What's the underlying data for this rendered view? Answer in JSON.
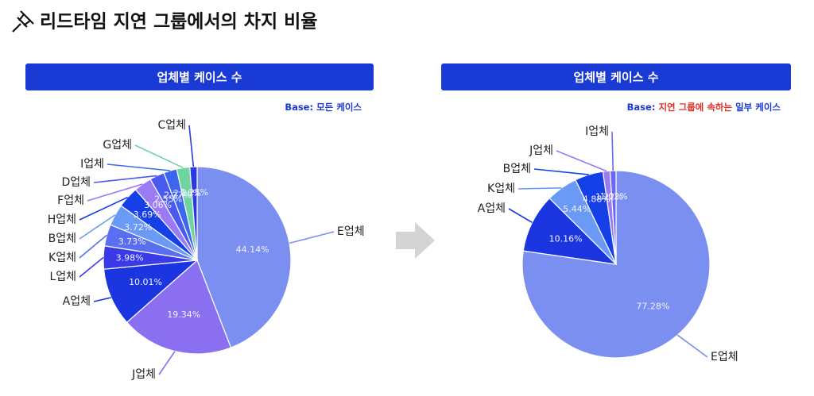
{
  "title": "리드타임 지연 그룹에서의 차지 비율",
  "chart_data": [
    {
      "type": "pie",
      "header": "업체별 케이스 수",
      "note": [
        "Base:",
        "모든 케이스"
      ],
      "note_colors": [
        "#1a3ad6",
        "#1a3ad6"
      ],
      "categories": [
        "E업체",
        "J업체",
        "A업체",
        "L업체",
        "K업체",
        "B업체",
        "H업체",
        "F업체",
        "D업체",
        "I업체",
        "G업체",
        "C업체"
      ],
      "values": [
        44.14,
        19.34,
        10.01,
        3.98,
        3.73,
        3.72,
        3.69,
        3.06,
        2.55,
        2.27,
        2.26,
        1.25
      ],
      "value_labels": [
        "44.14%",
        "19.34%",
        "10.01%",
        "3.98%",
        "3.73%",
        "3.72%",
        "3.69%",
        "3.06%",
        "2.55%",
        "2.27%",
        "2.26%",
        "1.25%"
      ],
      "colors": [
        "#7b8ff0",
        "#8a6ff0",
        "#1b36e0",
        "#3a3ae8",
        "#5a6ff0",
        "#6a9af5",
        "#1540e8",
        "#9a7af5",
        "#4a5af0",
        "#3c66f0",
        "#6ed4a0",
        "#2a3ae0"
      ]
    },
    {
      "type": "pie",
      "header": "업체별 케이스 수",
      "note": [
        "Base:",
        "지연 그룹에 속하는",
        "일부 케이스"
      ],
      "note_colors": [
        "#1a3ad6",
        "#e0302a",
        "#1a3ad6"
      ],
      "categories": [
        "E업체",
        "A업체",
        "K업체",
        "B업체",
        "J업체",
        "I업체"
      ],
      "values": [
        77.28,
        10.16,
        5.44,
        4.88,
        1.22,
        1.02
      ],
      "value_labels": [
        "77.28%",
        "10.16%",
        "5.44%",
        "4.88%",
        "1.22%",
        "1.02%"
      ],
      "colors": [
        "#7b8ff0",
        "#1b36e0",
        "#6a9af5",
        "#1540e8",
        "#9a7af5",
        "#6a6af0"
      ]
    }
  ]
}
